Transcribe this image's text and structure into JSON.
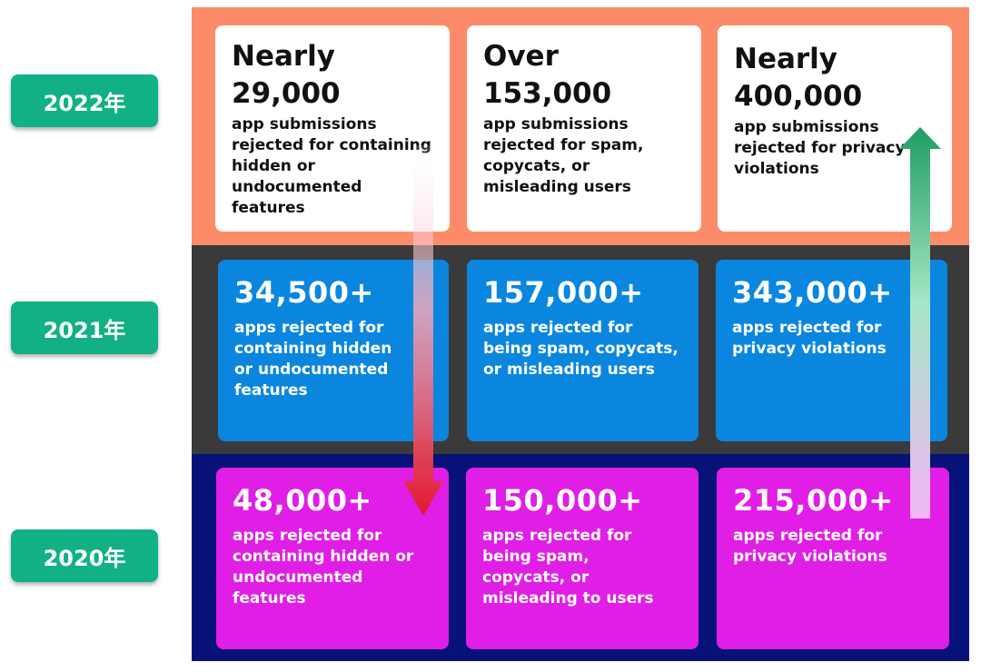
{
  "years": {
    "y2022": "2022年",
    "y2021": "2021年",
    "y2020": "2020年"
  },
  "row2022": [
    {
      "qualifier": "Nearly",
      "number": "29,000",
      "text": "app submissions\nrejected for containing\nhidden or\nundocumented features"
    },
    {
      "qualifier": "Over",
      "number": "153,000",
      "text": "app submissions\nrejected for spam,\ncopycats, or\nmisleading users"
    },
    {
      "qualifier": "Nearly",
      "number": "400,000",
      "text": "app submissions\nrejected for privacy\nviolations"
    }
  ],
  "row2021": [
    {
      "number": "34,500+",
      "text": "apps rejected for\ncontaining hidden\nor undocumented\nfeatures"
    },
    {
      "number": "157,000+",
      "text": "apps rejected for\nbeing spam, copycats,\nor misleading users"
    },
    {
      "number": "343,000+",
      "text": "apps rejected for\nprivacy violations"
    }
  ],
  "row2020": [
    {
      "number": "48,000+",
      "text": "apps rejected for\ncontaining hidden or\nundocumented\nfeatures"
    },
    {
      "number": "150,000+",
      "text": "apps rejected for\nbeing spam,\ncopycats, or\nmisleading to users"
    },
    {
      "number": "215,000+",
      "text": "apps rejected for\nprivacy violations"
    }
  ],
  "colors": {
    "band2022": "#fc8c69",
    "band2021": "#3a3a3a",
    "band2020": "#061278",
    "badge": "#11b185",
    "arrow_down": "#e0182e",
    "arrow_up": "#1f9e63"
  }
}
